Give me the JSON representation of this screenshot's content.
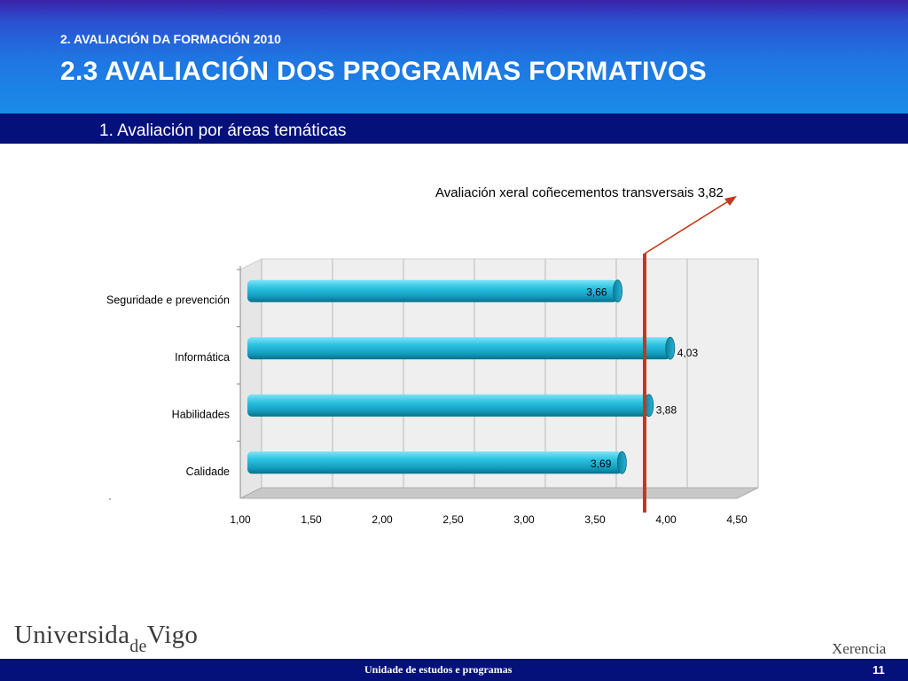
{
  "header": {
    "kicker": "2. AVALIACIÓN DA FORMACIÓN 2010",
    "title": "2.3 AVALIACIÓN DOS PROGRAMAS FORMATIVOS",
    "subtitle": "1. Avaliación por áreas temáticas"
  },
  "annotation": {
    "text": "Avaliación xeral coñecementos transversais 3,82",
    "reference_value": 3.82,
    "line_color": "#c03a1a"
  },
  "chart_data": {
    "type": "bar",
    "orientation": "horizontal",
    "categories": [
      "Seguridade e prevención",
      "Informática",
      "Habilidades",
      "Calidade"
    ],
    "values": [
      3.66,
      4.03,
      3.88,
      3.69
    ],
    "value_labels": [
      "3,66",
      "4,03",
      "3,88",
      "3,69"
    ],
    "xlim": [
      1.0,
      4.5
    ],
    "x_ticks": [
      "1,00",
      "1,50",
      "2,00",
      "2,50",
      "3,00",
      "3,50",
      "4,00",
      "4,50"
    ],
    "grid": true,
    "bar_color": "#22b8d8",
    "title": "",
    "xlabel": "",
    "ylabel": ""
  },
  "footer": {
    "logo_text_1": "Universida",
    "logo_text_de": "de",
    "logo_text_2": "Vigo",
    "brand_right": "Xerencia",
    "unit": "Unidade de estudos e programas",
    "page_number": "11"
  }
}
